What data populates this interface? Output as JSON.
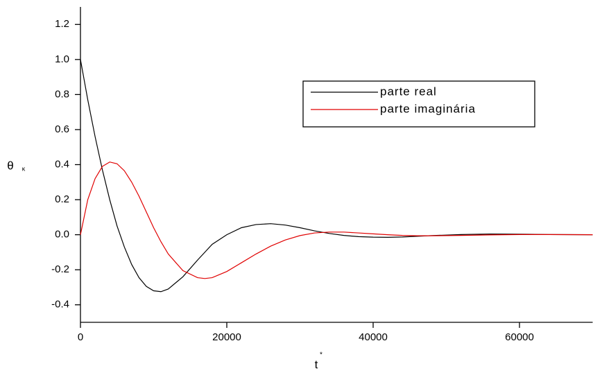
{
  "chart_data": {
    "type": "line",
    "xlabel": "t",
    "xlabel_sup": "*",
    "ylabel": "θ",
    "ylabel_sub": "κ",
    "x": [
      0,
      1000,
      2000,
      3000,
      4000,
      5000,
      6000,
      7000,
      8000,
      9000,
      10000,
      11000,
      12000,
      14000,
      16000,
      17000,
      18000,
      20000,
      22000,
      24000,
      26000,
      28000,
      30000,
      32000,
      34000,
      36000,
      38000,
      40000,
      42000,
      44000,
      46000,
      48000,
      52000,
      56000,
      60000,
      64000,
      70000
    ],
    "series": [
      {
        "name": "parte real",
        "color": "#000000",
        "values": [
          1.0,
          0.77,
          0.56,
          0.37,
          0.2,
          0.05,
          -0.07,
          -0.17,
          -0.245,
          -0.295,
          -0.32,
          -0.325,
          -0.31,
          -0.24,
          -0.145,
          -0.1,
          -0.055,
          0.0,
          0.04,
          0.058,
          0.063,
          0.055,
          0.04,
          0.022,
          0.007,
          -0.004,
          -0.011,
          -0.014,
          -0.015,
          -0.013,
          -0.009,
          -0.005,
          0.001,
          0.004,
          0.003,
          0.001,
          0.0
        ]
      },
      {
        "name": "parte imaginária",
        "color": "#e00000",
        "values": [
          0.0,
          0.2,
          0.32,
          0.39,
          0.415,
          0.405,
          0.365,
          0.3,
          0.22,
          0.13,
          0.04,
          -0.04,
          -0.11,
          -0.205,
          -0.245,
          -0.25,
          -0.245,
          -0.21,
          -0.16,
          -0.11,
          -0.065,
          -0.03,
          -0.005,
          0.01,
          0.015,
          0.015,
          0.01,
          0.005,
          0.0,
          -0.004,
          -0.006,
          -0.006,
          -0.004,
          -0.001,
          0.001,
          0.001,
          0.0
        ]
      }
    ],
    "xlim": [
      0,
      70000
    ],
    "xticks": [
      0,
      20000,
      40000,
      60000
    ],
    "ylim": [
      -0.5,
      1.3
    ],
    "yticks": [
      -0.4,
      -0.2,
      {
        "value": 0,
        "label": "0.0"
      },
      0.2,
      0.4,
      0.6,
      0.8,
      {
        "value": 1,
        "label": "1.0"
      },
      1.2
    ],
    "grid": false,
    "legend": "upper right"
  }
}
